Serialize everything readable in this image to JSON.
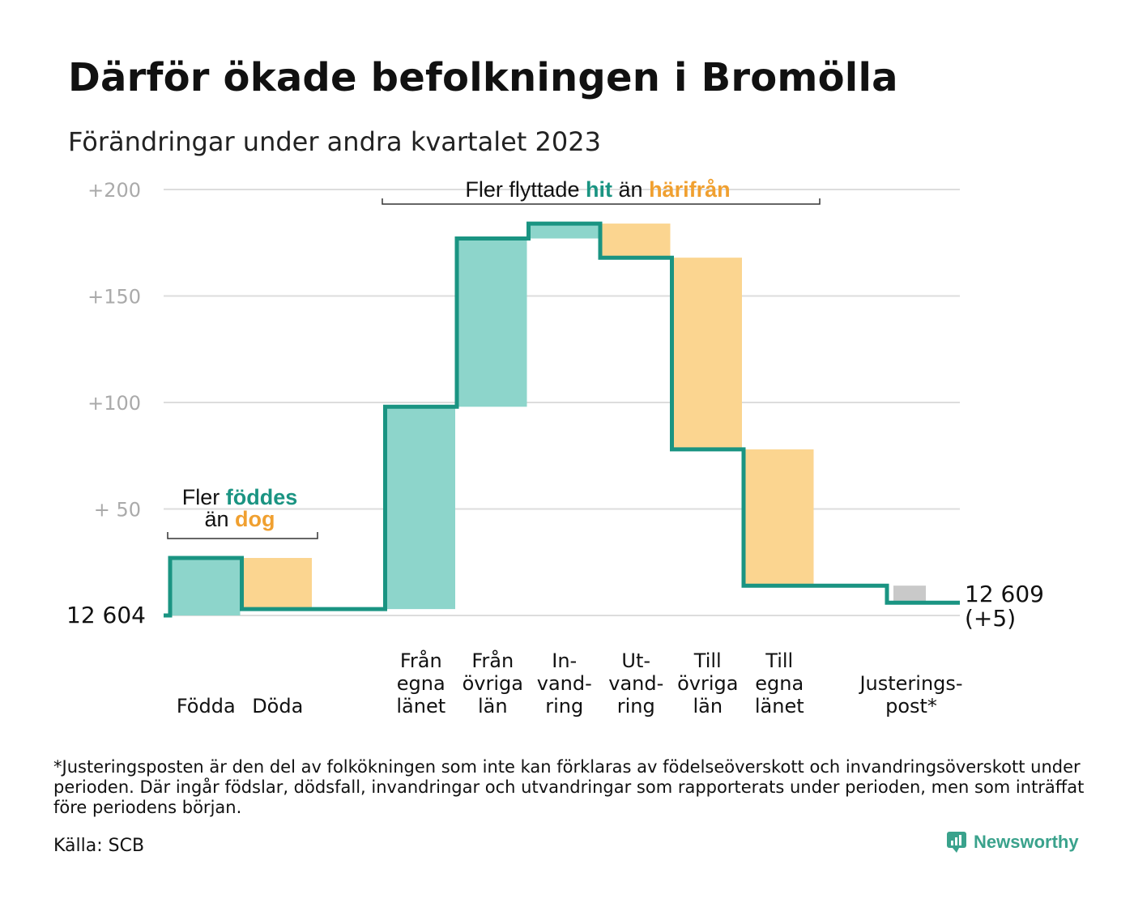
{
  "title": "Därför ökade befolkningen i Bromölla",
  "subtitle": "Förändringar under andra kvartalet 2023",
  "footnote": "*Justeringsposten är den del av folkökningen som inte kan förklaras av födelseöverskott och invandringsöverskott under perioden. Där ingår födslar, dödsfall, invandringar och utvandringar som rapporterats under perioden, men som inträffat före periodens början.",
  "source": "Källa: SCB",
  "brand": "Newsworthy",
  "colors": {
    "line": "#1a9482",
    "increase": "#8dd5cb",
    "decrease": "#fbd590",
    "adjustment": "#c9c9c9",
    "grid": "#dddddd",
    "teal_text": "#1a9482",
    "orange_text": "#f0a030"
  },
  "chart_data": {
    "type": "waterfall",
    "title": "Därför ökade befolkningen i Bromölla",
    "subtitle": "Förändringar under andra kvartalet 2023",
    "start_value": 12604,
    "start_label": "12  604",
    "end_value": 12609,
    "end_label_line1": "12 609",
    "end_label_line2": "(+5)",
    "ylim": [
      0,
      200
    ],
    "yticks": [
      {
        "value": 200,
        "label": "+200"
      },
      {
        "value": 150,
        "label": "+150"
      },
      {
        "value": 100,
        "label": "+100"
      },
      {
        "value": 50,
        "label": "+  50"
      }
    ],
    "grid": true,
    "categories": [
      {
        "lines": [
          "Födda"
        ],
        "change": 27
      },
      {
        "lines": [
          "Döda"
        ],
        "change": -24
      },
      {
        "lines": [
          ""
        ],
        "change": 0
      },
      {
        "lines": [
          "Från",
          "egna",
          "länet"
        ],
        "change": 95
      },
      {
        "lines": [
          "Från",
          "övriga",
          "län"
        ],
        "change": 79
      },
      {
        "lines": [
          "In-",
          "vand-",
          "ring"
        ],
        "change": 7
      },
      {
        "lines": [
          "Ut-",
          "vand-",
          "ring"
        ],
        "change": -16
      },
      {
        "lines": [
          "Till",
          "övriga",
          "län"
        ],
        "change": -90
      },
      {
        "lines": [
          "Till",
          "egna",
          "länet"
        ],
        "change": -64
      },
      {
        "lines": [
          ""
        ],
        "change": 0
      },
      {
        "lines": [
          "Justerings-",
          "post*"
        ],
        "change": -8
      }
    ],
    "annotations": {
      "births": {
        "prefix": "Fler",
        "highlight1": "föddes",
        "mid": "än",
        "highlight2": "dog"
      },
      "migration": {
        "prefix": "Fler flyttade",
        "highlight1": "hit",
        "mid": "än",
        "highlight2": "härifrån"
      }
    }
  }
}
